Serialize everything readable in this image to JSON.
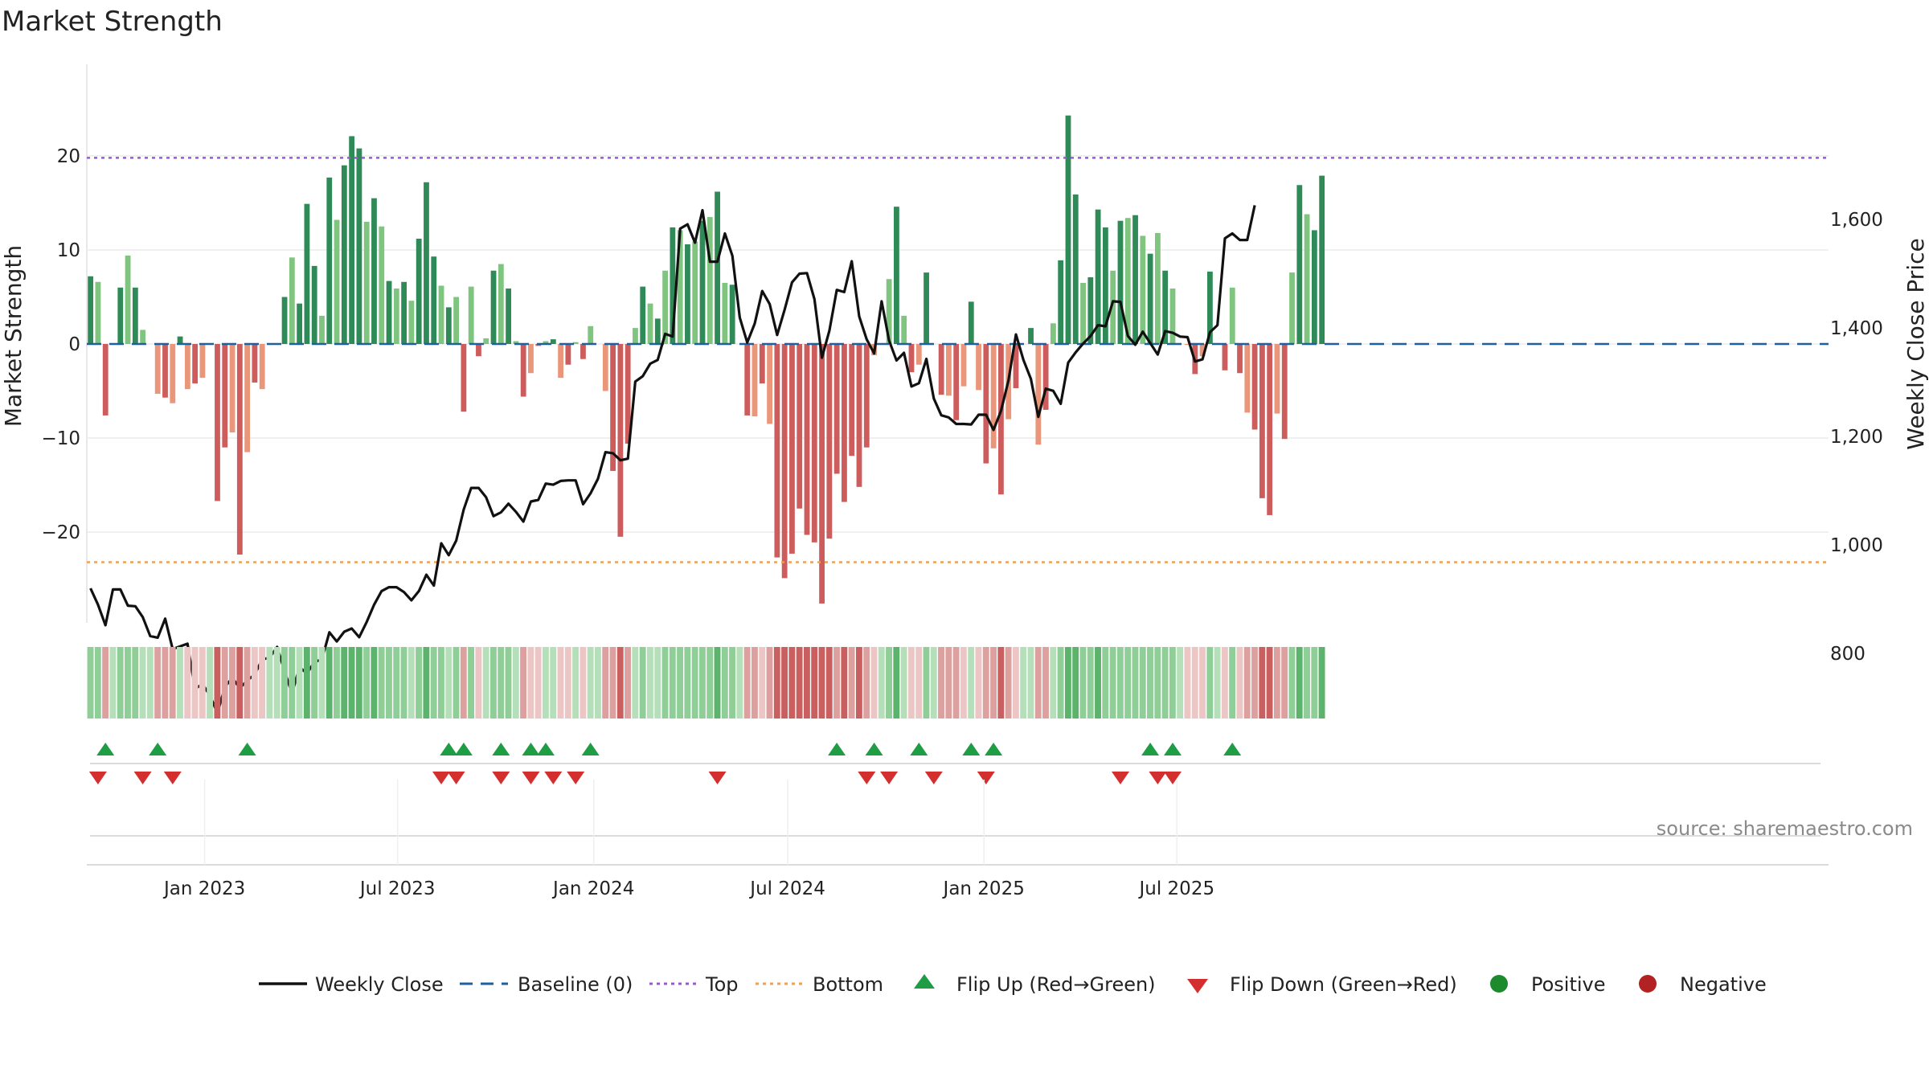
{
  "chart_data": {
    "type": "bar",
    "title": "Market Strength",
    "ylabel_left": "Market Strength",
    "ylabel_right": "Weekly Close Price",
    "source": "source: sharemaestro.com",
    "ylim_left": [
      -30,
      30
    ],
    "ylim_right": [
      600,
      1700
    ],
    "yticks_left": [
      20,
      10,
      0,
      -10,
      -20
    ],
    "yticks_left_labels": [
      "20",
      "10",
      "0",
      "−10",
      "−20"
    ],
    "yticks_right": [
      1600,
      1400,
      1200,
      1000,
      800
    ],
    "yticks_right_labels": [
      "1,600",
      "1,400",
      "1,200",
      "1,000",
      "800"
    ],
    "top_threshold": 19.8,
    "bottom_threshold": -23.2,
    "baseline": 0,
    "x_range": [
      "2022-09-12",
      "2025-09-29"
    ],
    "x_ticks": [
      {
        "date": "2023-01-01",
        "label": "Jan 2023"
      },
      {
        "date": "2023-07-01",
        "label": "Jul 2023"
      },
      {
        "date": "2024-01-01",
        "label": "Jan 2024"
      },
      {
        "date": "2024-07-01",
        "label": "Jul 2024"
      },
      {
        "date": "2025-01-01",
        "label": "Jan 2025"
      },
      {
        "date": "2025-07-01",
        "label": "Jul 2025"
      }
    ],
    "first_week": "2022-09-16",
    "week_step_days": 7,
    "strength": [
      7.2,
      6.6,
      -7.6,
      0,
      6,
      9.4,
      6,
      1.5,
      0,
      -5.3,
      -5.7,
      -6.3,
      0.8,
      -4.8,
      -4.2,
      -3.6,
      0,
      -16.7,
      -11,
      -9.4,
      -22.4,
      -11.5,
      -4.1,
      -4.8,
      0,
      0,
      5,
      9.2,
      4.3,
      14.9,
      8.3,
      3,
      17.7,
      13.2,
      19,
      22.1,
      20.8,
      13,
      15.5,
      12.5,
      6.7,
      5.9,
      6.6,
      4.6,
      11.2,
      17.2,
      9.3,
      6.2,
      3.9,
      5,
      -7.2,
      6.1,
      -1.3,
      0.6,
      7.8,
      8.5,
      5.9,
      0.3,
      -5.6,
      -3.1,
      -0.2,
      0.3,
      0.5,
      -3.6,
      -2.2,
      0.2,
      -1.6,
      1.9,
      0,
      -5,
      -13.5,
      -20.5,
      -10.6,
      1.7,
      6.1,
      4.3,
      2.7,
      7.8,
      12.4,
      12.1,
      10.6,
      10.9,
      13.1,
      13.5,
      16.2,
      6.5,
      6.3,
      0,
      -7.6,
      -7.7,
      -4.2,
      -8.5,
      -22.7,
      -24.9,
      -22.3,
      -17.5,
      -20.3,
      -21.1,
      -27.6,
      -20.7,
      -13.8,
      -16.8,
      -11.9,
      -15.2,
      -11,
      -1.2,
      0,
      6.9,
      14.6,
      3,
      -3,
      -2.2,
      7.6,
      0,
      -5.4,
      -5.5,
      -8.1,
      -4.5,
      4.5,
      -4.9,
      -12.7,
      -11.1,
      -16,
      -8,
      -4.7,
      0,
      1.7,
      -10.7,
      -7,
      2.2,
      8.9,
      24.3,
      15.9,
      6.5,
      7.1,
      14.3,
      12.4,
      7.8,
      13.1,
      13.4,
      13.7,
      11.5,
      9.6,
      11.8,
      7.8,
      5.9,
      0,
      -0.1,
      -3.2,
      -1.3,
      7.7,
      0,
      -2.8,
      6,
      -3.1,
      -7.3,
      -9.1,
      -16.4,
      -18.2,
      -7.4,
      -10.1,
      7.6,
      16.9,
      13.8,
      12.1,
      17.9
    ],
    "weekly_close": [
      920,
      890,
      852,
      918,
      918,
      888,
      887,
      867,
      832,
      829,
      864,
      808,
      813,
      818,
      734,
      744,
      722,
      690,
      738,
      755,
      736,
      750,
      761,
      789,
      792,
      812,
      767,
      726,
      775,
      763,
      784,
      789,
      839,
      822,
      840,
      846,
      830,
      858,
      890,
      915,
      922,
      922,
      913,
      898,
      915,
      945,
      925,
      1003,
      981,
      1008,
      1065,
      1105,
      1105,
      1088,
      1053,
      1060,
      1076,
      1061,
      1043,
      1080,
      1083,
      1113,
      1111,
      1118,
      1119,
      1119,
      1075,
      1095,
      1122,
      1171,
      1169,
      1156,
      1159,
      1301,
      1311,
      1334,
      1341,
      1389,
      1384,
      1583,
      1591,
      1557,
      1617,
      1522,
      1522,
      1574,
      1533,
      1419,
      1373,
      1408,
      1468,
      1444,
      1387,
      1433,
      1484,
      1500,
      1501,
      1453,
      1345,
      1395,
      1470,
      1466,
      1523,
      1421,
      1379,
      1353,
      1449,
      1377,
      1340,
      1354,
      1292,
      1298,
      1343,
      1270,
      1239,
      1235,
      1223,
      1223,
      1222,
      1240,
      1240,
      1212,
      1247,
      1303,
      1388,
      1341,
      1306,
      1236,
      1288,
      1284,
      1260,
      1336,
      1355,
      1371,
      1385,
      1405,
      1403,
      1449,
      1448,
      1385,
      1369,
      1393,
      1372,
      1351,
      1394,
      1391,
      1384,
      1383,
      1338,
      1342,
      1392,
      1405,
      1565,
      1574,
      1562,
      1562,
      1626
    ],
    "cell_colors": {
      "strong_pos": "#2e8b57",
      "pos": "#7fc47f",
      "strong_neg": "#cd5c5c",
      "neg": "#e9967a"
    },
    "heat_colors": {
      "pos_dark": "#5cb36b",
      "pos_mid": "#8fce96",
      "pos_light": "#b4dfb8",
      "neg_dark": "#c9605f",
      "neg_mid": "#dca09e",
      "neg_light": "#ecc6c4"
    },
    "flip_up_weeks": [
      2,
      9,
      21,
      48,
      50,
      55,
      59,
      61,
      67,
      100,
      105,
      111,
      118,
      121,
      142,
      145,
      153
    ],
    "flip_down_weeks": [
      1,
      7,
      11,
      47,
      49,
      55,
      59,
      62,
      65,
      84,
      104,
      107,
      113,
      120,
      138,
      143,
      145
    ],
    "series_colors": {
      "weekly_close": "#111111",
      "baseline": "#1f5f9e",
      "top": "#9b59d0",
      "bottom": "#f0a050",
      "flip_up": "#1f9d45",
      "flip_down": "#d32f2f",
      "positive": "#1e8a2e",
      "negative": "#b22222"
    },
    "legend": [
      {
        "key": "weekly_close",
        "label": "Weekly Close",
        "marker": "line-solid"
      },
      {
        "key": "baseline",
        "label": "Baseline (0)",
        "marker": "line-dash"
      },
      {
        "key": "top",
        "label": "Top",
        "marker": "line-dot"
      },
      {
        "key": "bottom",
        "label": "Bottom",
        "marker": "line-dot"
      },
      {
        "key": "flip_up",
        "label": "Flip Up (Red→Green)",
        "marker": "triangle-up"
      },
      {
        "key": "flip_down",
        "label": "Flip Down (Green→Red)",
        "marker": "triangle-down"
      },
      {
        "key": "positive",
        "label": "Positive",
        "marker": "circle"
      },
      {
        "key": "negative",
        "label": "Negative",
        "marker": "circle"
      }
    ]
  }
}
